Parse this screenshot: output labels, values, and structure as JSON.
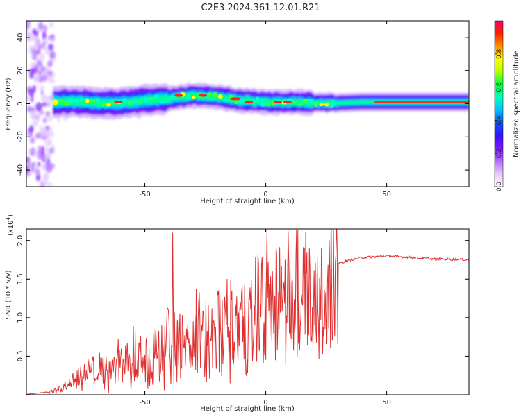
{
  "page_title": "C2E3.2024.361.12.01.R21",
  "chart_data": [
    {
      "type": "heatmap",
      "xlabel": "Height of straight line (km)",
      "ylabel": "Frequency (Hz)",
      "xlim": [
        -99,
        84
      ],
      "ylim": [
        -50,
        50
      ],
      "x_ticks": [
        -50,
        0,
        50
      ],
      "x_tick_labels": [
        "-50",
        "0",
        "50"
      ],
      "y_ticks": [
        -40,
        -20,
        0,
        20,
        40
      ],
      "y_tick_labels": [
        "-40",
        "-20",
        "0",
        "20",
        "40"
      ],
      "grid": false,
      "colorbar": {
        "label": "Normalized spectral amplitude",
        "range": [
          0,
          1
        ],
        "ticks": [
          0,
          0.2,
          0.4,
          0.6,
          0.8
        ],
        "tick_labels": [
          "0.0",
          "0.2",
          "0.4",
          "0.6",
          "0.8"
        ],
        "colors": [
          "#ffffff",
          "#e8c8ff",
          "#b070ff",
          "#7a18ff",
          "#3a10ff",
          "#0058ff",
          "#00c0ff",
          "#00ffc0",
          "#00ff40",
          "#b0ff00",
          "#ffff00",
          "#ff9000",
          "#ff2000",
          "#ff0060"
        ]
      },
      "ridge": {
        "x": [
          -88,
          -80,
          -70,
          -60,
          -50,
          -40,
          -30,
          -20,
          -10,
          0,
          10,
          20,
          30,
          40,
          50,
          60,
          70,
          84
        ],
        "y": [
          1,
          1.5,
          0.5,
          0.5,
          2,
          3,
          5,
          4,
          2,
          1,
          1,
          0.5,
          0.5,
          1,
          1,
          1,
          1,
          1
        ]
      },
      "scatter_region": {
        "x_range": [
          -99,
          -88
        ],
        "y_range": [
          -50,
          50
        ]
      }
    },
    {
      "type": "line",
      "xlabel": "Height of straight line (km)",
      "ylabel": "SNR (10 * v/v)",
      "y_multiplier_label": "(x10",
      "y_multiplier_exponent": "4",
      "xlim": [
        -99,
        84
      ],
      "ylim": [
        0,
        2.15
      ],
      "x_ticks": [
        -50,
        0,
        50
      ],
      "x_tick_labels": [
        "-50",
        "0",
        "50"
      ],
      "y_ticks": [
        0.5,
        1.0,
        1.5,
        2.0
      ],
      "y_tick_labels": [
        "0.5",
        "1.0",
        "1.5",
        "2.0"
      ],
      "grid": false,
      "line_color": "#e03030",
      "envelope": {
        "x": [
          -99,
          -90,
          -85,
          -80,
          -75,
          -70,
          -65,
          -60,
          -55,
          -50,
          -45,
          -40,
          -35,
          -30,
          -25,
          -20,
          -15,
          -10,
          -5,
          0,
          5,
          10,
          15,
          20,
          25,
          30,
          35,
          40,
          50,
          60,
          70,
          84
        ],
        "y": [
          0,
          0.03,
          0.1,
          0.2,
          0.3,
          0.35,
          0.4,
          0.5,
          0.6,
          0.55,
          0.65,
          0.75,
          0.8,
          0.85,
          0.95,
          1.0,
          1.1,
          1.15,
          1.3,
          1.4,
          1.45,
          1.45,
          1.55,
          1.6,
          1.65,
          1.7,
          1.75,
          1.78,
          1.8,
          1.78,
          1.76,
          1.75
        ]
      },
      "spikes": [
        {
          "x": -38.5,
          "y": 2.1
        },
        {
          "x": -43,
          "y": 0.9
        },
        {
          "x": -14,
          "y": 1.35
        },
        {
          "x": 8,
          "y": 1.75
        },
        {
          "x": 23,
          "y": 1.9
        },
        {
          "x": 17,
          "y": 1.85
        }
      ]
    }
  ]
}
